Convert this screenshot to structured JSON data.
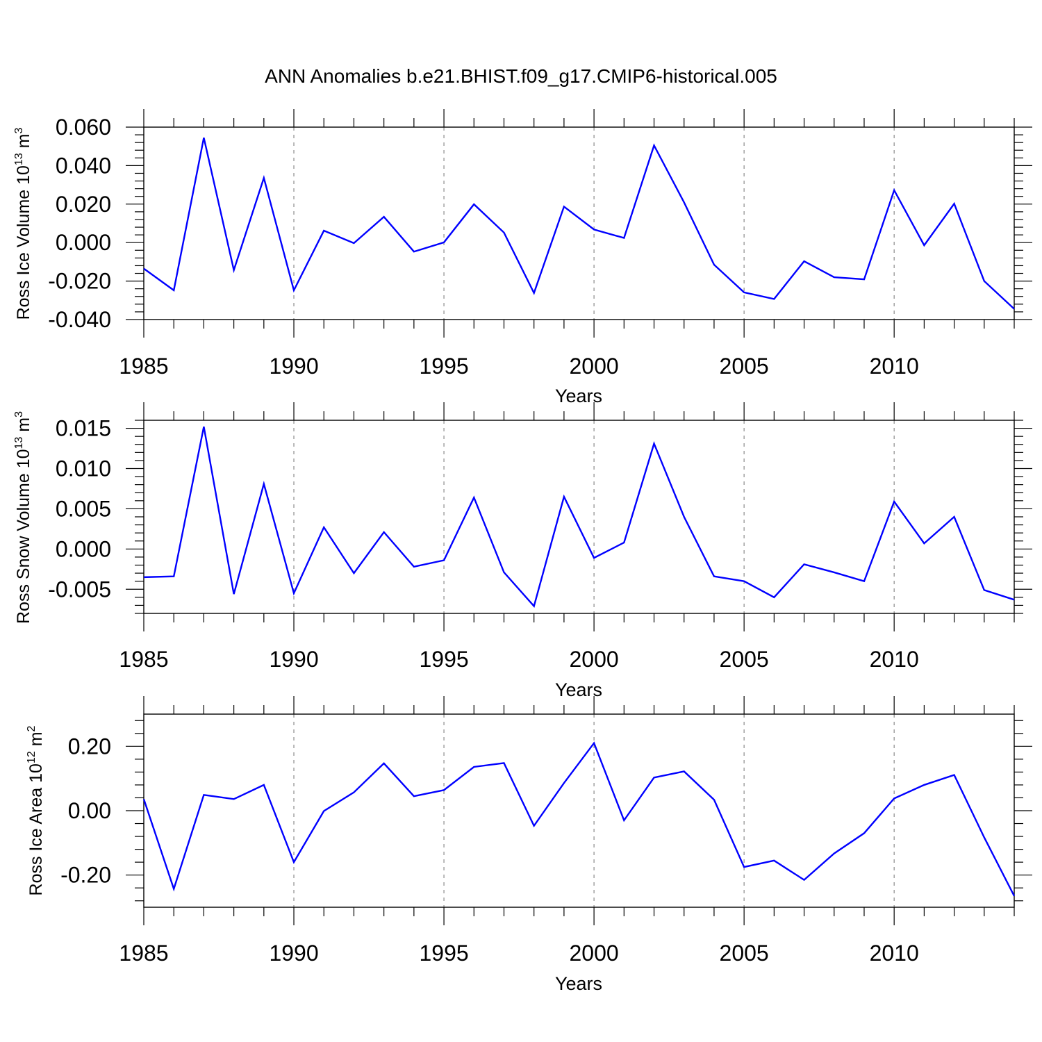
{
  "figure_title": "ANN Anomalies b.e21.BHIST.f09_g17.CMIP6-historical.005",
  "line_color": "#0000ff",
  "chart_data": [
    {
      "type": "line",
      "ylabel": {
        "main": "Ross Ice Volume 10",
        "exp": "13",
        "unit": " m",
        "unit_exp": "3"
      },
      "xlabel": "Years",
      "xlim": [
        1985,
        2014
      ],
      "ylim": [
        -0.04,
        0.06
      ],
      "yticks": [
        -0.04,
        -0.02,
        0.0,
        0.02,
        0.04,
        0.06
      ],
      "ytick_labels": [
        "-0.040",
        "-0.020",
        "0.000",
        "0.020",
        "0.040",
        "0.060"
      ],
      "xticks": [
        1985,
        1990,
        1995,
        2000,
        2005,
        2010
      ],
      "xtick_labels": [
        "1985",
        "1990",
        "1995",
        "2000",
        "2005",
        "2010"
      ],
      "grid_x": [
        1990,
        1995,
        2000,
        2005,
        2010
      ],
      "x": [
        1985,
        1986,
        1987,
        1988,
        1989,
        1990,
        1991,
        1992,
        1993,
        1994,
        1995,
        1996,
        1997,
        1998,
        1999,
        2000,
        2001,
        2002,
        2003,
        2004,
        2005,
        2006,
        2007,
        2008,
        2009,
        2010,
        2011,
        2012,
        2013,
        2014
      ],
      "values": [
        -0.0135,
        -0.0248,
        0.0545,
        -0.0143,
        0.0336,
        -0.0248,
        0.0062,
        -0.0003,
        0.0134,
        -0.0047,
        0.0001,
        0.0199,
        0.0052,
        -0.0262,
        0.0187,
        0.0068,
        0.0024,
        0.0505,
        0.0209,
        -0.0115,
        -0.0259,
        -0.0293,
        -0.0097,
        -0.018,
        -0.0191,
        0.0272,
        -0.0014,
        0.0202,
        -0.02,
        -0.0345
      ]
    },
    {
      "type": "line",
      "ylabel": {
        "main": "Ross Snow Volume 10",
        "exp": "13",
        "unit": " m",
        "unit_exp": "3"
      },
      "xlabel": "Years",
      "xlim": [
        1985,
        2014
      ],
      "ylim": [
        -0.008,
        0.016
      ],
      "yticks": [
        -0.005,
        0.0,
        0.005,
        0.01,
        0.015
      ],
      "ytick_labels": [
        "-0.005",
        "0.000",
        "0.005",
        "0.010",
        "0.015"
      ],
      "xticks": [
        1985,
        1990,
        1995,
        2000,
        2005,
        2010
      ],
      "xtick_labels": [
        "1985",
        "1990",
        "1995",
        "2000",
        "2005",
        "2010"
      ],
      "grid_x": [
        1990,
        1995,
        2000,
        2005,
        2010
      ],
      "x": [
        1985,
        1986,
        1987,
        1988,
        1989,
        1990,
        1991,
        1992,
        1993,
        1994,
        1995,
        1996,
        1997,
        1998,
        1999,
        2000,
        2001,
        2002,
        2003,
        2004,
        2005,
        2006,
        2007,
        2008,
        2009,
        2010,
        2011,
        2012,
        2013,
        2014
      ],
      "values": [
        -0.0035,
        -0.0034,
        0.0152,
        -0.0056,
        0.0081,
        -0.0055,
        0.0027,
        -0.003,
        0.0021,
        -0.0022,
        -0.0014,
        0.0064,
        -0.0029,
        -0.0071,
        0.0065,
        -0.0011,
        0.0008,
        0.0131,
        0.004,
        -0.0034,
        -0.004,
        -0.006,
        -0.0019,
        -0.0029,
        -0.004,
        0.0059,
        0.0007,
        0.004,
        -0.0051,
        -0.0063
      ]
    },
    {
      "type": "line",
      "ylabel": {
        "main": "Ross Ice Area 10",
        "exp": "12",
        "unit": " m",
        "unit_exp": "2"
      },
      "xlabel": "Years",
      "xlim": [
        1985,
        2014
      ],
      "ylim": [
        -0.3,
        0.3
      ],
      "yticks": [
        -0.2,
        0.0,
        0.2
      ],
      "ytick_labels": [
        "-0.20",
        "0.00",
        "0.20"
      ],
      "xticks": [
        1985,
        1990,
        1995,
        2000,
        2005,
        2010
      ],
      "xtick_labels": [
        "1985",
        "1990",
        "1995",
        "2000",
        "2005",
        "2010"
      ],
      "grid_x": [
        1990,
        1995,
        2000,
        2005,
        2010
      ],
      "x": [
        1985,
        1986,
        1987,
        1988,
        1989,
        1990,
        1991,
        1992,
        1993,
        1994,
        1995,
        1996,
        1997,
        1998,
        1999,
        2000,
        2001,
        2002,
        2003,
        2004,
        2005,
        2006,
        2007,
        2008,
        2009,
        2010,
        2011,
        2012,
        2013,
        2014
      ],
      "values": [
        0.036,
        -0.243,
        0.049,
        0.036,
        0.08,
        -0.16,
        -0.001,
        0.057,
        0.147,
        0.045,
        0.064,
        0.136,
        0.148,
        -0.047,
        0.086,
        0.21,
        -0.03,
        0.103,
        0.122,
        0.034,
        -0.175,
        -0.155,
        -0.215,
        -0.133,
        -0.07,
        0.038,
        0.08,
        0.111,
        -0.083,
        -0.265
      ]
    }
  ]
}
